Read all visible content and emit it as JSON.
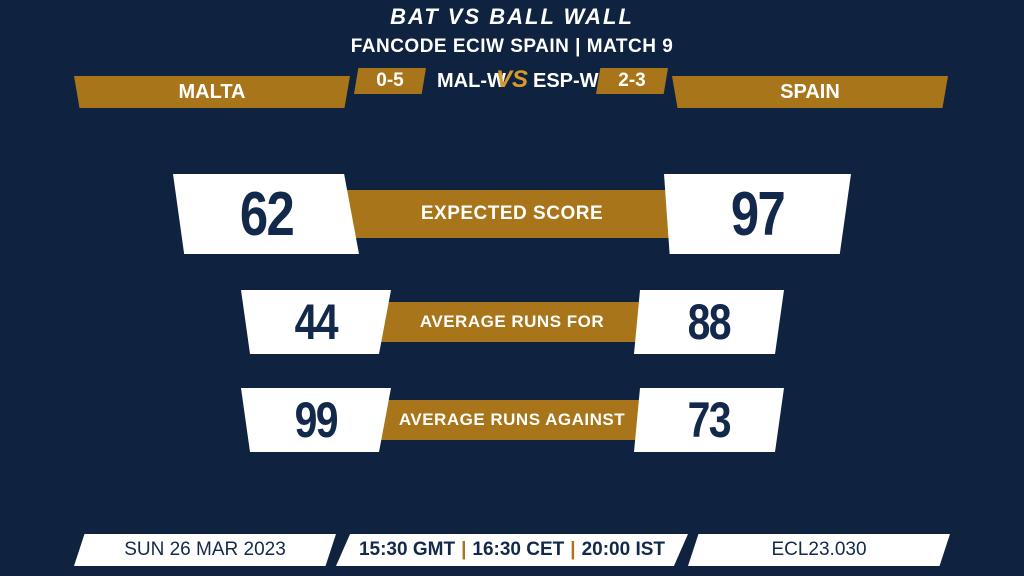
{
  "header": {
    "title": "BAT VS BALL WALL",
    "subtitle": "FANCODE ECIW SPAIN | MATCH 9"
  },
  "teams": {
    "left": {
      "name": "MALTA",
      "code": "MAL-W",
      "form": "0-5"
    },
    "right": {
      "name": "SPAIN",
      "code": "ESP-W",
      "form": "2-3"
    },
    "vs_label": "VS"
  },
  "stats": [
    {
      "label": "EXPECTED SCORE",
      "left": "62",
      "right": "97"
    },
    {
      "label": "AVERAGE RUNS FOR",
      "left": "44",
      "right": "88"
    },
    {
      "label": "AVERAGE RUNS AGAINST",
      "left": "99",
      "right": "73"
    }
  ],
  "footer": {
    "date": "SUN 26 MAR 2023",
    "time_gmt": "15:30 GMT",
    "time_cet": "16:30 CET",
    "time_ist": "20:00 IST",
    "separator": "|",
    "match_code": "ECL23.030"
  },
  "colors": {
    "background": "#0f2240",
    "accent": "#a8751a",
    "text_dark": "#13294b"
  }
}
